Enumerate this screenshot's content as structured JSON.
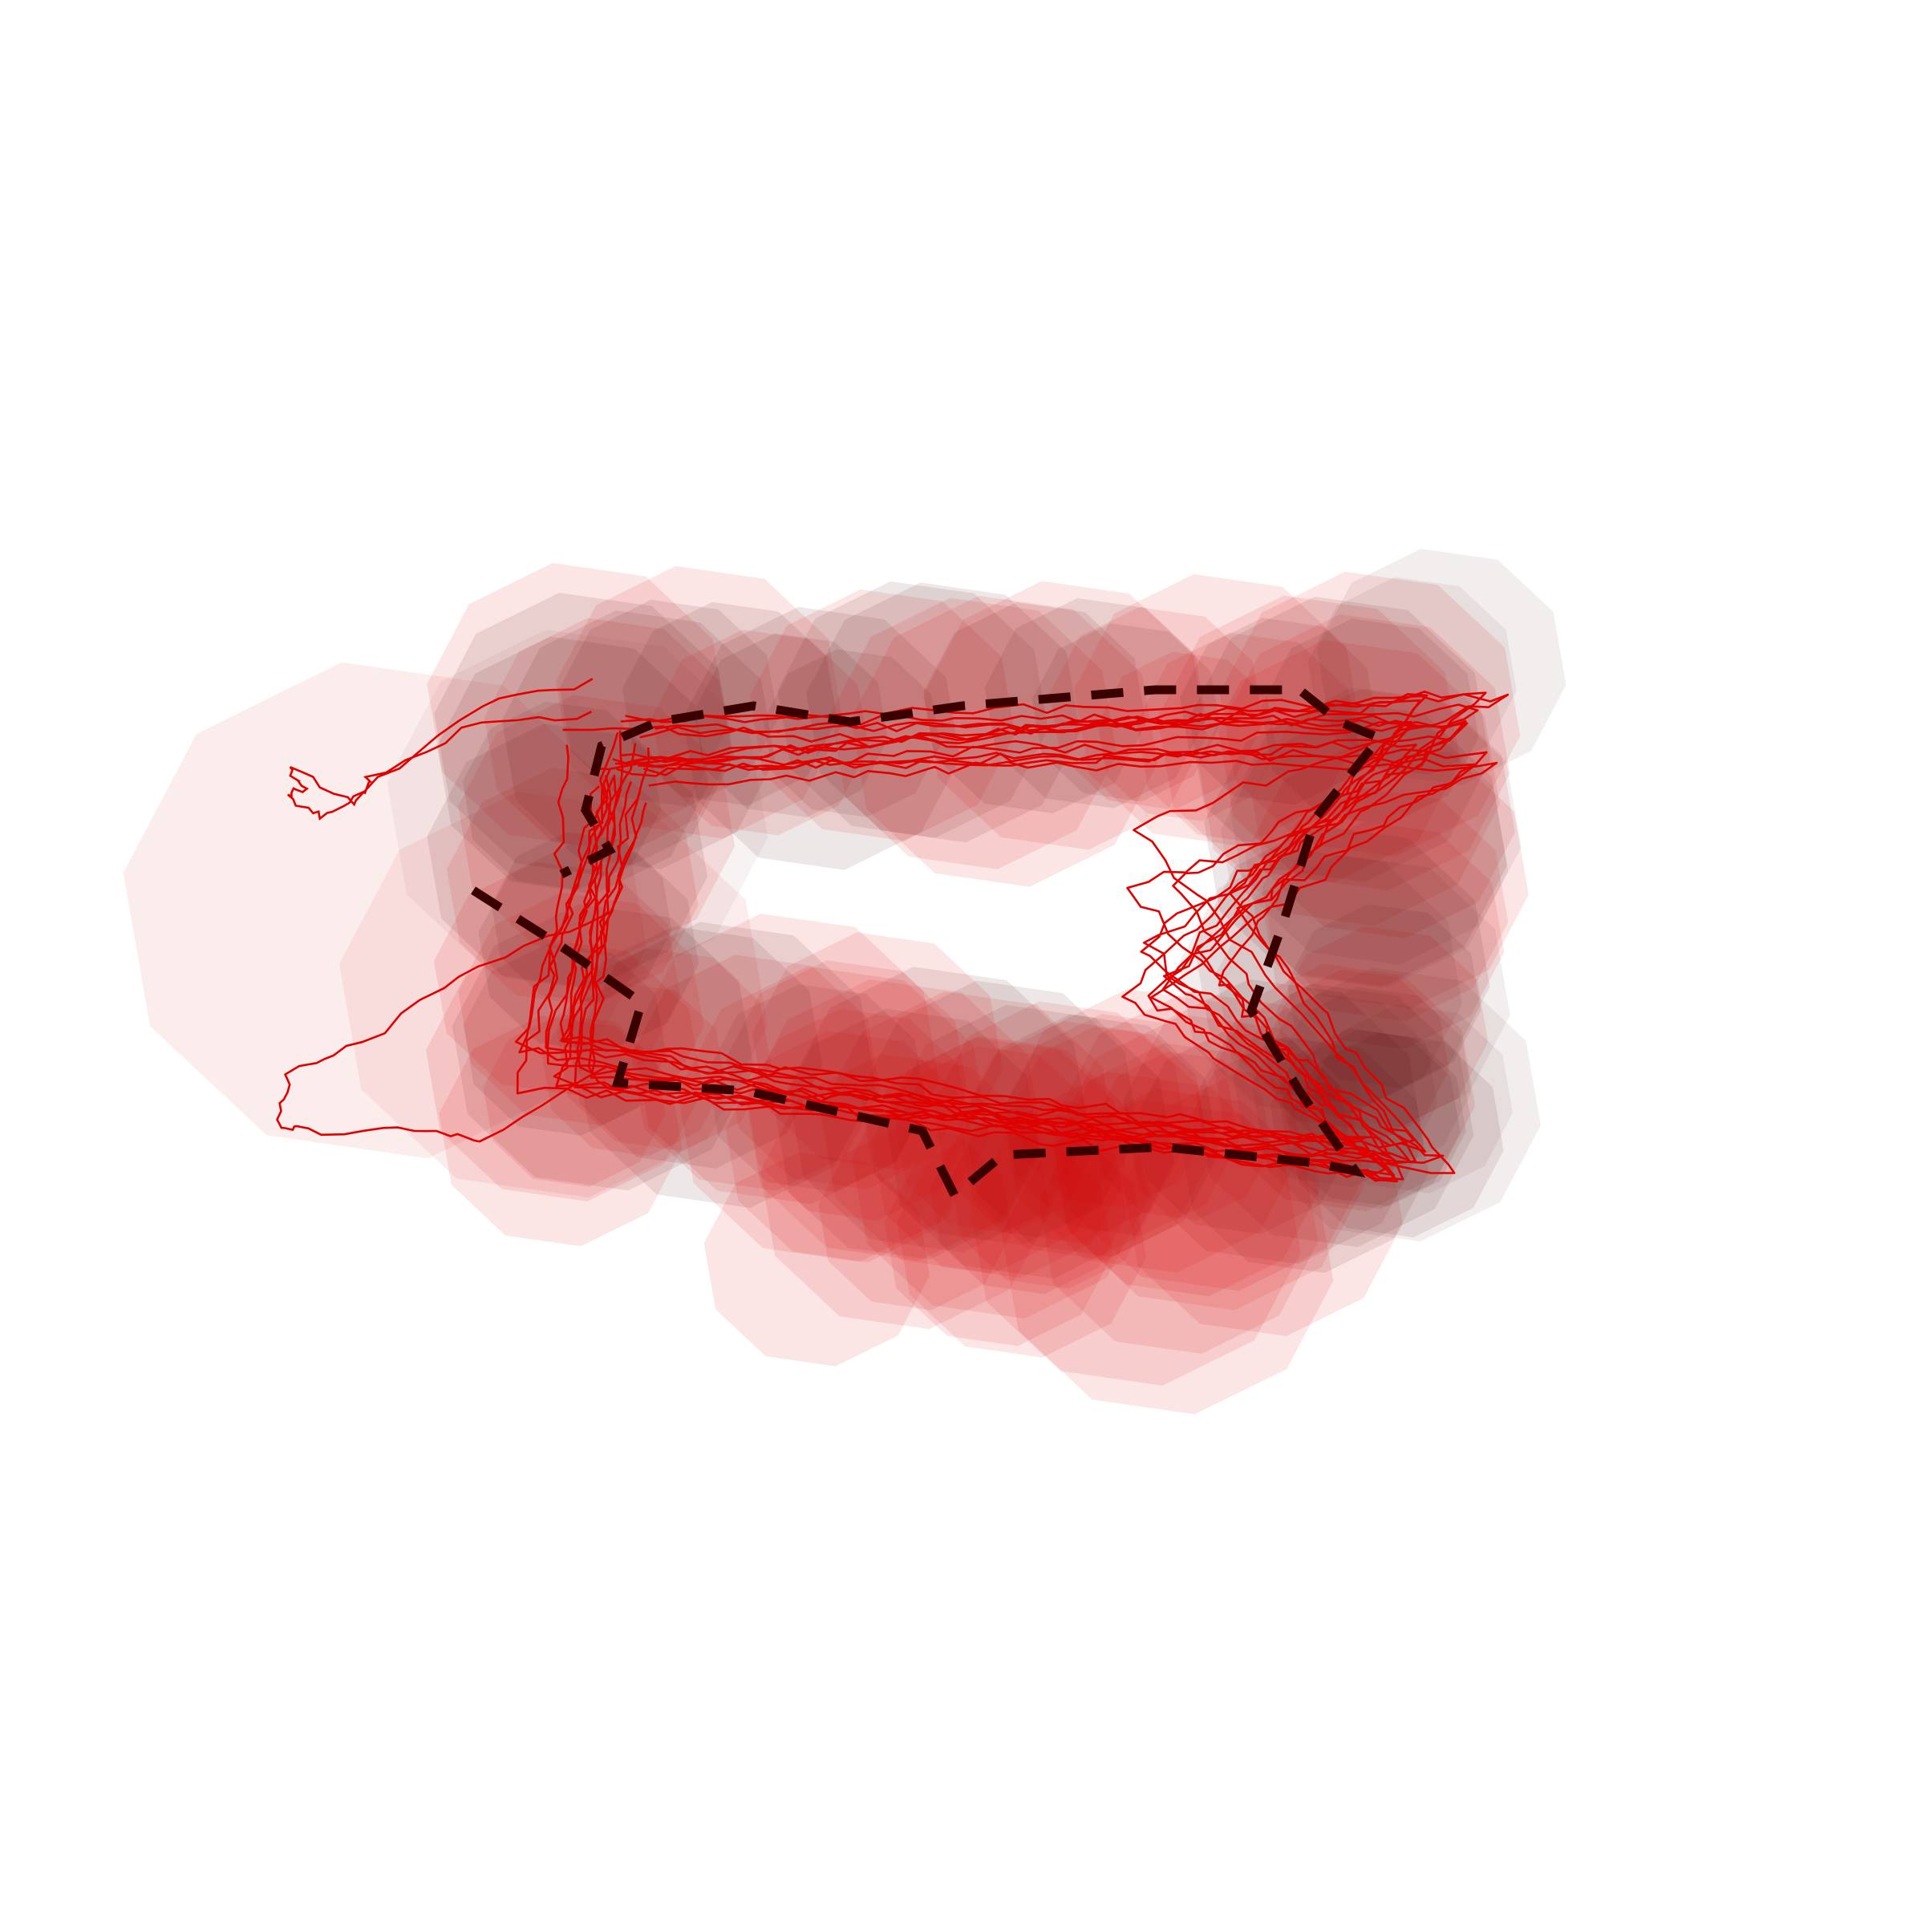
{
  "figure": {
    "background": "#ffffff",
    "blob_color": "#d40000",
    "blob_dark_color": "#5a1010",
    "trace_color": "#e00000",
    "mean_path_color": "#3a0000",
    "mean_path_style": "dashed",
    "shape_description_text": "",
    "trace_count": 14,
    "blob_opacity": 0.09
  }
}
